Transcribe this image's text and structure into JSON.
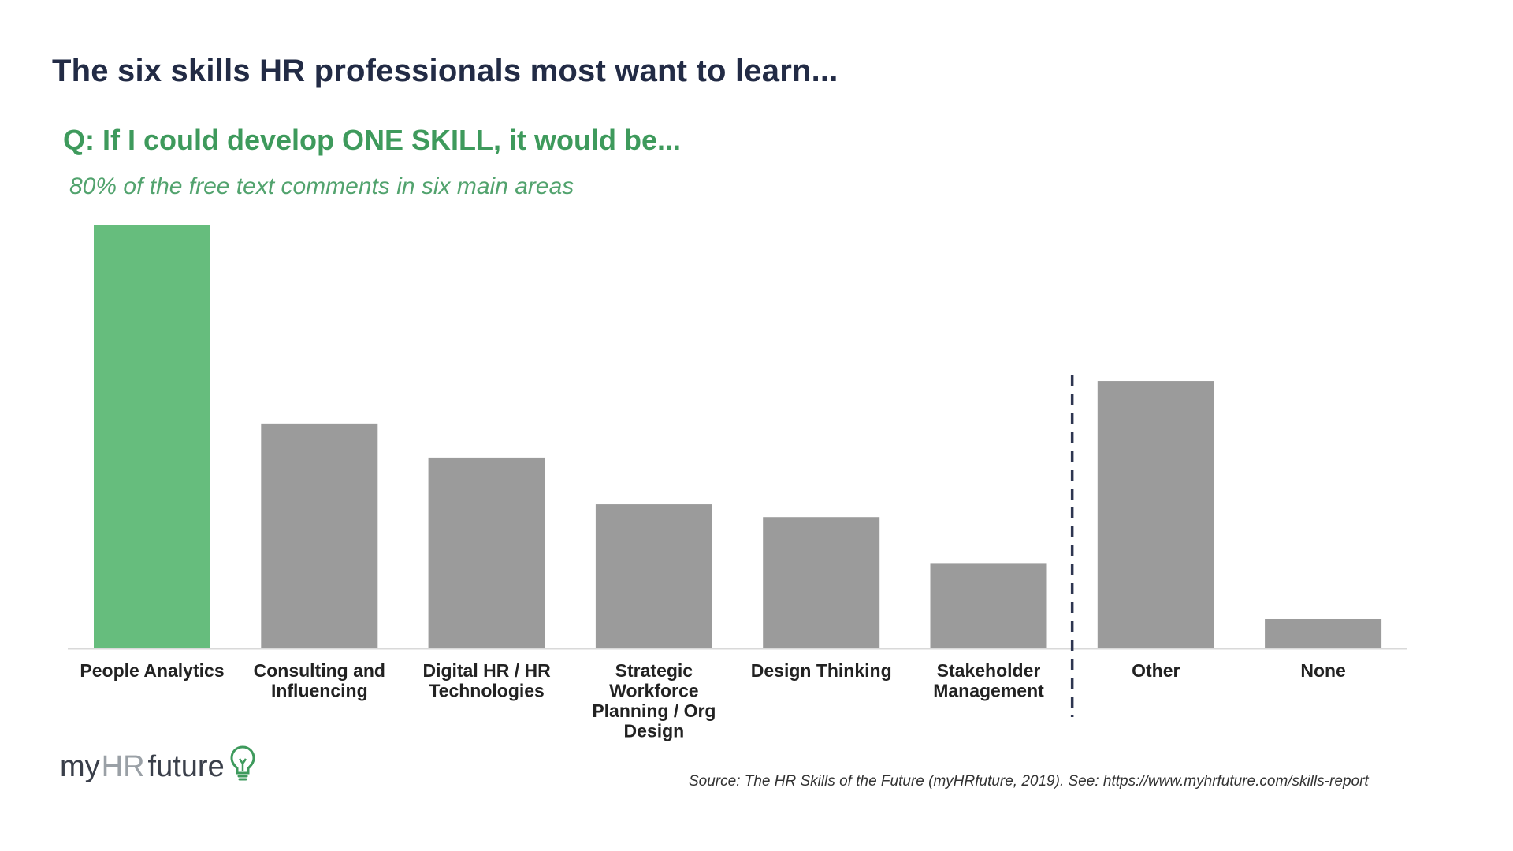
{
  "header": {
    "title": "The six skills HR professionals most want to learn...",
    "question": "Q: If I could develop ONE SKILL, it would be...",
    "subtitle": "80% of the free text comments in six main areas"
  },
  "footer": {
    "logo_my": "my",
    "logo_hr": "HR",
    "logo_future": "future",
    "logo_icon": "lightbulb-icon",
    "source": "Source: The HR Skills of the Future (myHRfuture, 2019). See: https://www.myhrfuture.com/skills-report"
  },
  "colors": {
    "highlight": "#66bd7d",
    "bar": "#9b9b9b",
    "divider": "#2d3550",
    "axis": "#d9d9d9"
  },
  "chart_data": {
    "type": "bar",
    "title": "",
    "xlabel": "",
    "ylabel": "",
    "ylim": [
      0,
      100
    ],
    "categories": [
      [
        "People Analytics"
      ],
      [
        "Consulting and",
        "Influencing"
      ],
      [
        "Digital HR / HR",
        "Technologies"
      ],
      [
        "Strategic",
        "Workforce",
        "Planning / Org",
        "Design"
      ],
      [
        "Design Thinking"
      ],
      [
        "Stakeholder",
        "Management"
      ],
      [
        "Other"
      ],
      [
        "None"
      ]
    ],
    "values": [
      100,
      53,
      45,
      34,
      31,
      20,
      63,
      7
    ],
    "highlight_index": 0,
    "divider_after_index": 5,
    "grid": false,
    "legend": "none"
  }
}
